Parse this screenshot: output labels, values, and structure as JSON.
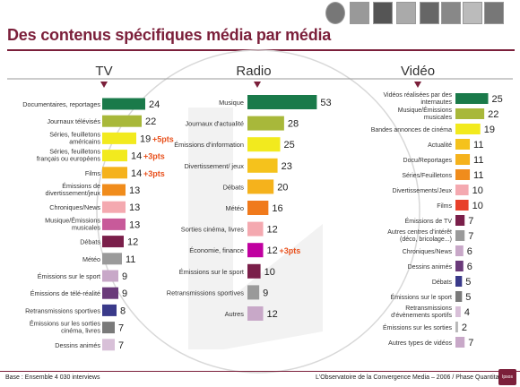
{
  "title": "Des contenus spécifiques média par média",
  "footer": {
    "left": "Base : Ensemble 4 030 interviews",
    "right": "L'Observatoire de la Convergence Media – 2006 / Phase Quantitative",
    "logo": "Ipsos"
  },
  "chart_data": [
    {
      "type": "bar",
      "title": "TV",
      "orientation": "horizontal",
      "categories": [
        "Documentaires, reportages",
        "Journaux télévisés",
        "Séries, feuilletons américains",
        "Séries, feuilletons français ou européens",
        "Films",
        "Émissions de divertissement/jeux",
        "Chroniques/News",
        "Musique/Émissions musicales",
        "Débats",
        "Météo",
        "Émissions sur le sport",
        "Émissions de télé-réalité",
        "Retransmissions sportives",
        "Émissions sur les sorties cinéma, livres",
        "Dessins animés"
      ],
      "values": [
        24,
        22,
        19,
        14,
        14,
        13,
        13,
        13,
        12,
        11,
        9,
        9,
        8,
        7,
        7
      ],
      "annotations": [
        {
          "category": "Séries, feuilletons américains",
          "text": "+5pts"
        },
        {
          "category": "Séries, feuilletons français ou européens",
          "text": "+3pts"
        },
        {
          "category": "Films",
          "text": "+3pts"
        }
      ],
      "colors": [
        "#1a7a4a",
        "#a8b83a",
        "#f2ea1e",
        "#f2ea1e",
        "#f5b21c",
        "#f08c1c",
        "#f4a9b0",
        "#c85a9a",
        "#7a1f4a",
        "#9a9a9a",
        "#c8a8c8",
        "#6a3a7a",
        "#3a3a8a",
        "#7a7a7a",
        "#d8c0d8"
      ]
    },
    {
      "type": "bar",
      "title": "Radio",
      "orientation": "horizontal",
      "categories": [
        "Musique",
        "Journaux d'actualité",
        "Émissions d'information",
        "Divertissement/ jeux",
        "Débats",
        "Météo",
        "Sorties cinéma, livres",
        "Économie, finance",
        "Émissions sur le sport",
        "Retransmissions sportives",
        "Autres"
      ],
      "values": [
        53,
        28,
        25,
        23,
        20,
        16,
        12,
        12,
        10,
        9,
        12
      ],
      "annotations": [
        {
          "category": "Économie, finance",
          "text": "+3pts"
        }
      ],
      "colors": [
        "#1a7a4a",
        "#a8b83a",
        "#f2ea1e",
        "#f5c21c",
        "#f5b21c",
        "#f07a1c",
        "#f4a9b0",
        "#c000a0",
        "#7a1f4a",
        "#9a9a9a",
        "#c8a8c8"
      ]
    },
    {
      "type": "bar",
      "title": "Vidéo",
      "orientation": "horizontal",
      "categories": [
        "Vidéos réalisées par des internautes",
        "Musique/Émissions musicales",
        "Bandes annonces de cinéma",
        "Actualité",
        "Docu/Reportages",
        "Séries/Feuilletons",
        "Divertissements/Jeux",
        "Films",
        "Émissions de TV",
        "Autres centres d'intérêt (déco, bricolage...)",
        "Chroniques/News",
        "Dessins animés",
        "Débats",
        "Émissions sur le sport",
        "Retransmissions d'évènements sportifs",
        "Émissions sur les sorties",
        "Autres types de vidéos"
      ],
      "values": [
        25,
        22,
        19,
        11,
        11,
        11,
        10,
        10,
        7,
        7,
        6,
        6,
        5,
        5,
        4,
        2,
        7
      ],
      "annotations": [],
      "colors": [
        "#1a7a4a",
        "#a8b83a",
        "#f2ea1e",
        "#f5c21c",
        "#f5b21c",
        "#f08c1c",
        "#f4a9b0",
        "#e8402a",
        "#7a1f4a",
        "#9a9a9a",
        "#c8a8c8",
        "#6a3a7a",
        "#3a3a8a",
        "#7a7a7a",
        "#d8c0d8",
        "#b8b8b8",
        "#c8a8c8"
      ]
    }
  ]
}
